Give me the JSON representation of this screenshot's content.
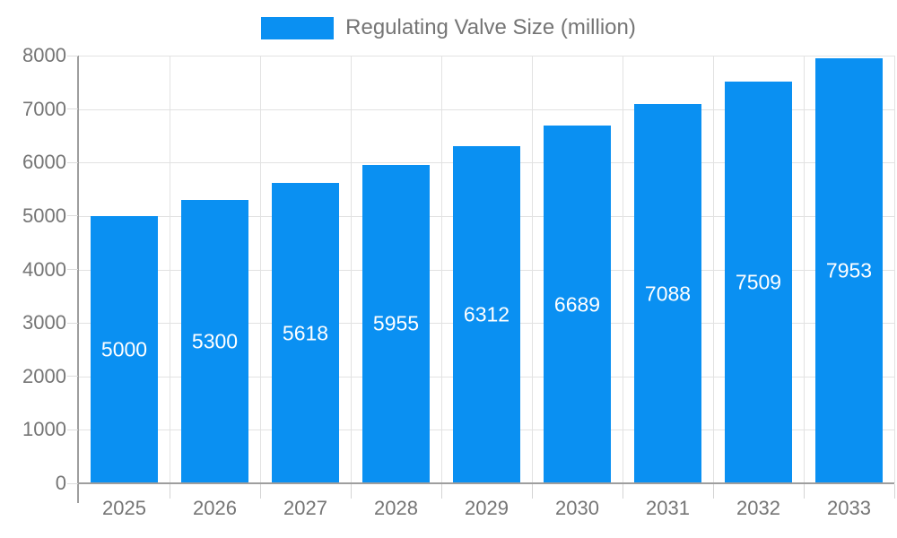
{
  "chart_data": {
    "type": "bar",
    "title": "Regulating Valve Size (million)",
    "legend": {
      "label": "Regulating Valve Size (million)",
      "position": "top"
    },
    "categories": [
      "2025",
      "2026",
      "2027",
      "2028",
      "2029",
      "2030",
      "2031",
      "2032",
      "2033"
    ],
    "values": [
      5000,
      5300,
      5618,
      5955,
      6312,
      6689,
      7088,
      7509,
      7953
    ],
    "series": [
      {
        "name": "Regulating Valve Size (million)",
        "values": [
          5000,
          5300,
          5618,
          5955,
          6312,
          6689,
          7088,
          7509,
          7953
        ]
      }
    ],
    "xlabel": "",
    "ylabel": "",
    "ylim": [
      0,
      8000
    ],
    "ytick_step": 1000,
    "ytick_labels": [
      "0",
      "1000",
      "2000",
      "3000",
      "4000",
      "5000",
      "6000",
      "7000",
      "8000"
    ],
    "grid": true,
    "bar_labels_visible": true,
    "colors": {
      "bar": "#0a90f2",
      "bar_label_text": "#ffffff",
      "axis_text": "#757575",
      "legend_text": "#757575",
      "gridline": "#e2e2e2",
      "axis_line": "#9e9e9e"
    }
  }
}
